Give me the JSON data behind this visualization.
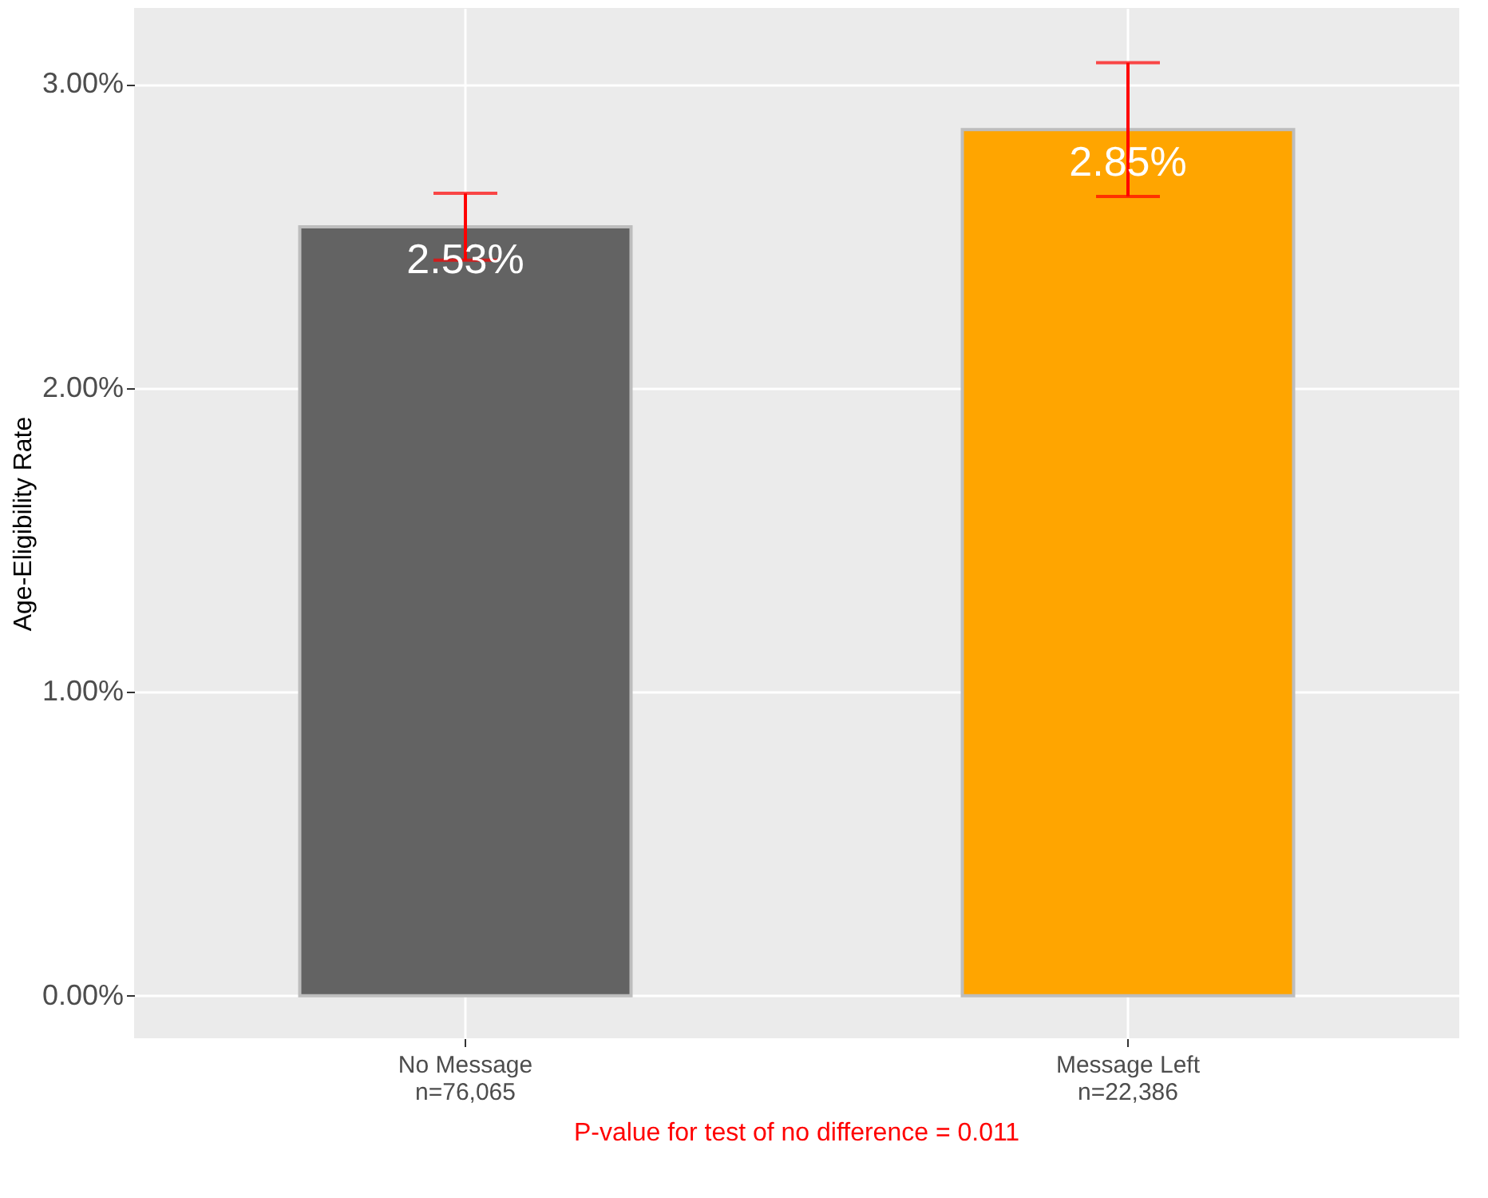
{
  "chart_data": {
    "type": "bar",
    "ylabel": "Age-Eligibility Rate",
    "categories": [
      "No Message\nn=76,065",
      "Message Left\nn=22,386"
    ],
    "values": [
      2.53,
      2.85
    ],
    "colors": [
      "#636363",
      "#ffa500"
    ],
    "errors": [
      [
        2.42,
        2.64
      ],
      [
        2.63,
        3.07
      ]
    ],
    "ylim": [
      -0.14,
      3.25
    ],
    "yticks": [
      {
        "value": 0,
        "label": "0.00%"
      },
      {
        "value": 1,
        "label": "1.00%"
      },
      {
        "value": 2,
        "label": "2.00%"
      },
      {
        "value": 3,
        "label": "3.00%"
      }
    ],
    "value_labels": [
      "2.53%",
      "2.85%"
    ],
    "grid": true,
    "annotations": [
      "P-value for test of no difference = 0.011"
    ]
  }
}
